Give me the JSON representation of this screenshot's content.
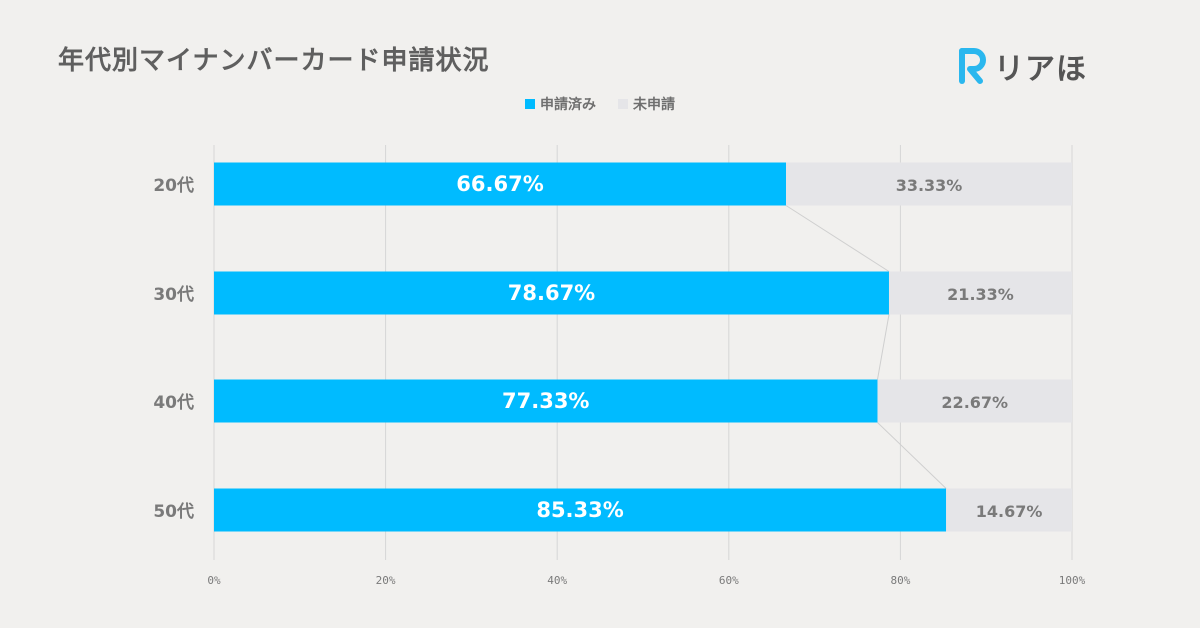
{
  "title": "年代別マイナンバーカード申請状況",
  "logo": {
    "text": "リアほ",
    "color": "#2ab7ee"
  },
  "colors": {
    "applied": "#00bbff",
    "not_applied": "#e5e5e8",
    "grid": "#d6d6d6",
    "connector": "#cfcfcf"
  },
  "chart_data": {
    "type": "bar",
    "orientation": "horizontal",
    "stacked": true,
    "categories": [
      "20代",
      "30代",
      "40代",
      "50代"
    ],
    "series": [
      {
        "name": "申請済み",
        "values": [
          66.67,
          78.67,
          77.33,
          85.33
        ],
        "labels": [
          "66.67%",
          "78.67%",
          "77.33%",
          "85.33%"
        ]
      },
      {
        "name": "未申請",
        "values": [
          33.33,
          21.33,
          22.67,
          14.67
        ],
        "labels": [
          "33.33%",
          "21.33%",
          "22.67%",
          "14.67%"
        ]
      }
    ],
    "xlim": [
      0,
      100
    ],
    "xticks": [
      "0%",
      "20%",
      "40%",
      "60%",
      "80%",
      "100%"
    ],
    "legend": "top-center",
    "grid": true
  }
}
